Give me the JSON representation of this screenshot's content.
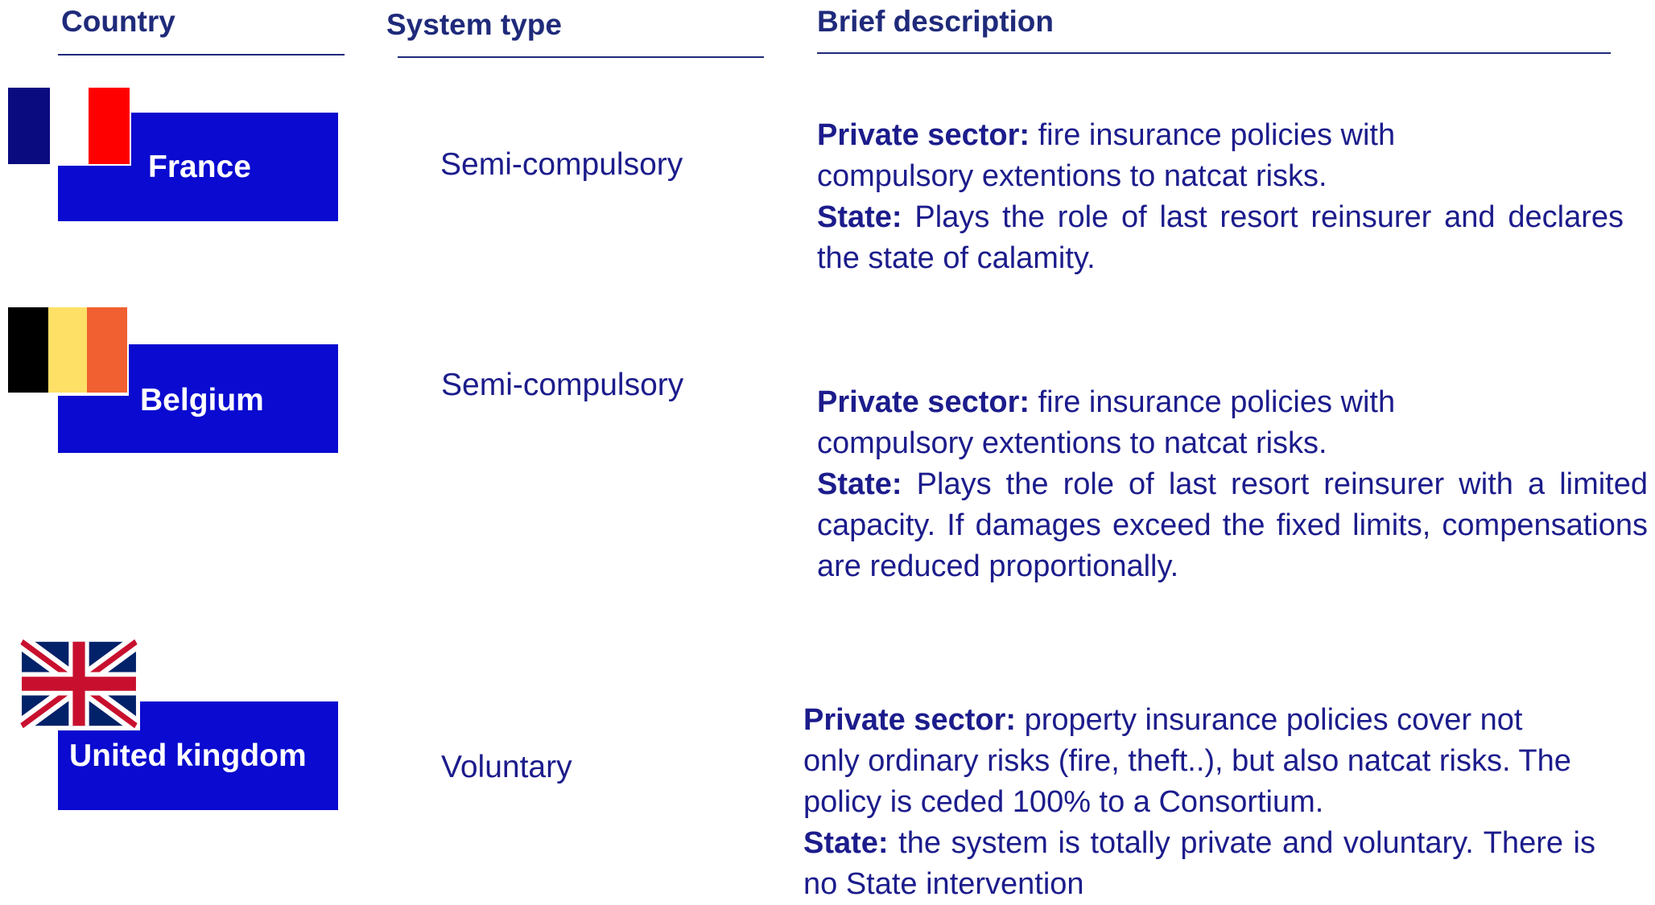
{
  "headers": [
    "Country",
    "System type",
    "Brief description"
  ],
  "rows": [
    {
      "country": "France",
      "system_type": "Semi-compulsory",
      "description": [
        {
          "label": "Private sector:",
          "text": "fire insurance policies with compulsory extentions to natcat risks."
        },
        {
          "label": "State:",
          "text": "Plays the role of last resort reinsurer and declares the state of calamity."
        }
      ]
    },
    {
      "country": "Belgium",
      "system_type": "Semi-compulsory",
      "description": [
        {
          "label": "Private sector:",
          "text": "fire insurance policies with compulsory extentions to natcat risks."
        },
        {
          "label": "State:",
          "text": "Plays the role of last resort reinsurer  with a limited capacity. If damages exceed the fixed limits, compensations are reduced proportionally."
        }
      ]
    },
    {
      "country": "United kingdom",
      "system_type": "Voluntary",
      "description": [
        {
          "label": "Private sector:",
          "text": "property insurance policies cover not only ordinary risks (fire, theft..), but also natcat risks. The policy is ceded 100% to a Consortium."
        },
        {
          "label": "State:",
          "text": "the system is totally private and voluntary. There is no State intervention"
        }
      ]
    }
  ]
}
